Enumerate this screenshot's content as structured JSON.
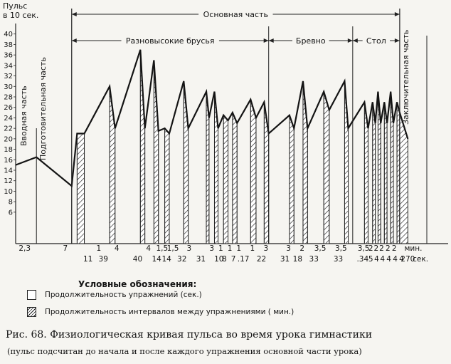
{
  "chart_data": {
    "type": "line",
    "ylabel_line1": "Пульс",
    "ylabel_line2": "в 10 сек.",
    "yticks": [
      6,
      8,
      10,
      12,
      14,
      16,
      18,
      20,
      22,
      24,
      26,
      28,
      30,
      32,
      34,
      36,
      38,
      40
    ],
    "ylim": [
      0,
      42
    ],
    "duration_labels": [
      {
        "text": "2,3",
        "t": 0.1
      },
      {
        "text": "7",
        "t": 0.55
      },
      {
        "text": "1",
        "t": 0.92
      },
      {
        "text": "4",
        "t": 1.12
      },
      {
        "text": "4",
        "t": 1.47
      },
      {
        "text": "1,5",
        "t": 1.62
      },
      {
        "text": "1,5",
        "t": 1.74
      },
      {
        "text": "3",
        "t": 1.92
      },
      {
        "text": "3",
        "t": 2.17
      },
      {
        "text": "1",
        "t": 2.27
      },
      {
        "text": "1",
        "t": 2.37
      },
      {
        "text": "1",
        "t": 2.47
      },
      {
        "text": "1",
        "t": 2.62
      },
      {
        "text": "3",
        "t": 2.77
      },
      {
        "text": "3",
        "t": 3.02
      },
      {
        "text": "2",
        "t": 3.17
      },
      {
        "text": "3,5",
        "t": 3.37
      },
      {
        "text": "3,5",
        "t": 3.6
      },
      {
        "text": "3,5",
        "t": 3.85
      },
      {
        "text": "2",
        "t": 3.93
      },
      {
        "text": "2",
        "t": 3.99
      },
      {
        "text": "2",
        "t": 4.05
      },
      {
        "text": "2",
        "t": 4.12
      },
      {
        "text": "2",
        "t": 4.19
      },
      {
        "text": "мин.",
        "t": 4.4
      }
    ],
    "exercise_labels": [
      {
        "text": "11",
        "t": 0.8
      },
      {
        "text": "39",
        "t": 0.97
      },
      {
        "text": "40",
        "t": 1.35
      },
      {
        "text": "14",
        "t": 1.56
      },
      {
        "text": "14",
        "t": 1.67
      },
      {
        "text": "32",
        "t": 1.84
      },
      {
        "text": "31",
        "t": 2.05
      },
      {
        "text": "10",
        "t": 2.25
      },
      {
        "text": "8",
        "t": 2.31
      },
      {
        "text": "7",
        "t": 2.41
      },
      {
        "text": ".17",
        "t": 2.52
      },
      {
        "text": "22",
        "t": 2.72
      },
      {
        "text": "31",
        "t": 2.98
      },
      {
        "text": "18",
        "t": 3.12
      },
      {
        "text": "33",
        "t": 3.3
      },
      {
        "text": "33",
        "t": 3.57
      },
      {
        "text": ".34",
        "t": 3.84
      },
      {
        "text": "5",
        "t": 3.93
      },
      {
        "text": "4",
        "t": 3.995
      },
      {
        "text": "4",
        "t": 4.06
      },
      {
        "text": "4",
        "t": 4.13
      },
      {
        "text": "4",
        "t": 4.2
      },
      {
        "text": "4",
        "t": 4.27
      },
      {
        "text": "270",
        "t": 4.34
      },
      {
        "text": "сек.",
        "t": 4.48
      }
    ],
    "series": [
      {
        "points": [
          {
            "t": 0.0,
            "v": 15
          },
          {
            "t": 0.23,
            "v": 16.5
          },
          {
            "t": 0.62,
            "v": 11
          },
          {
            "t": 0.68,
            "v": 21
          },
          {
            "t": 0.76,
            "v": 21
          },
          {
            "t": 1.04,
            "v": 30
          },
          {
            "t": 1.1,
            "v": 22
          },
          {
            "t": 1.38,
            "v": 37
          },
          {
            "t": 1.43,
            "v": 22
          },
          {
            "t": 1.53,
            "v": 35
          },
          {
            "t": 1.58,
            "v": 21.5
          },
          {
            "t": 1.65,
            "v": 22
          },
          {
            "t": 1.7,
            "v": 21
          },
          {
            "t": 1.86,
            "v": 31
          },
          {
            "t": 1.91,
            "v": 22
          },
          {
            "t": 2.11,
            "v": 29
          },
          {
            "t": 2.14,
            "v": 24
          },
          {
            "t": 2.2,
            "v": 29
          },
          {
            "t": 2.24,
            "v": 22
          },
          {
            "t": 2.3,
            "v": 24.5
          },
          {
            "t": 2.35,
            "v": 23.5
          },
          {
            "t": 2.4,
            "v": 25
          },
          {
            "t": 2.45,
            "v": 23
          },
          {
            "t": 2.6,
            "v": 27.5
          },
          {
            "t": 2.66,
            "v": 24
          },
          {
            "t": 2.75,
            "v": 27
          },
          {
            "t": 2.8,
            "v": 21
          },
          {
            "t": 3.03,
            "v": 24.5
          },
          {
            "t": 3.08,
            "v": 22
          },
          {
            "t": 3.18,
            "v": 31
          },
          {
            "t": 3.23,
            "v": 22
          },
          {
            "t": 3.41,
            "v": 29
          },
          {
            "t": 3.47,
            "v": 25.5
          },
          {
            "t": 3.64,
            "v": 31
          },
          {
            "t": 3.68,
            "v": 22
          },
          {
            "t": 3.86,
            "v": 27
          },
          {
            "t": 3.9,
            "v": 22
          },
          {
            "t": 3.95,
            "v": 27
          },
          {
            "t": 3.98,
            "v": 23
          },
          {
            "t": 4.01,
            "v": 29
          },
          {
            "t": 4.04,
            "v": 23
          },
          {
            "t": 4.08,
            "v": 27
          },
          {
            "t": 4.11,
            "v": 23
          },
          {
            "t": 4.15,
            "v": 29
          },
          {
            "t": 4.18,
            "v": 23
          },
          {
            "t": 4.22,
            "v": 27
          },
          {
            "t": 4.25,
            "v": 25
          },
          {
            "t": 4.34,
            "v": 20
          }
        ]
      }
    ],
    "hatched_intervals": [
      [
        0.68,
        0.76
      ],
      [
        1.04,
        1.1
      ],
      [
        1.38,
        1.43
      ],
      [
        1.53,
        1.58
      ],
      [
        1.65,
        1.7
      ],
      [
        1.86,
        1.91
      ],
      [
        2.11,
        2.14
      ],
      [
        2.2,
        2.24
      ],
      [
        2.3,
        2.35
      ],
      [
        2.4,
        2.45
      ],
      [
        2.6,
        2.66
      ],
      [
        2.75,
        2.8
      ],
      [
        3.03,
        3.08
      ],
      [
        3.18,
        3.23
      ],
      [
        3.41,
        3.47
      ],
      [
        3.64,
        3.68
      ],
      [
        3.86,
        3.9
      ],
      [
        3.95,
        3.98
      ],
      [
        4.01,
        4.04
      ],
      [
        4.08,
        4.11
      ],
      [
        4.15,
        4.18
      ],
      [
        4.22,
        4.25
      ],
      [
        4.25,
        4.34
      ]
    ],
    "time_range": [
      0,
      4.55
    ],
    "section_dividers": [
      0.23,
      0.62,
      2.8,
      3.73,
      3.86,
      4.25
    ],
    "parts": {
      "intro": "Вводная часть",
      "prep": "Подготовительная часть",
      "main": "Основная часть",
      "final": "Заключительная часть"
    },
    "subsections": [
      {
        "label": "Разновысокие брусья",
        "from": 0.62,
        "to": 2.8
      },
      {
        "label": "Бревно",
        "from": 2.8,
        "to": 3.73
      },
      {
        "label": "Стол",
        "from": 3.73,
        "to": 4.25
      }
    ]
  },
  "legend": {
    "title": "Условные обозначения:",
    "items": [
      {
        "label": "Продолжительность упражнений   (сек.)"
      },
      {
        "label": "Продолжительность интервалов между упражнениями   ( мин.)"
      }
    ]
  },
  "caption": {
    "line1": "Рис. 68. Физиологическая кривая пульса во время урока гимнастики",
    "line2": "(пульс подсчитан до начала и после каждого упражнения основной части урока)"
  }
}
